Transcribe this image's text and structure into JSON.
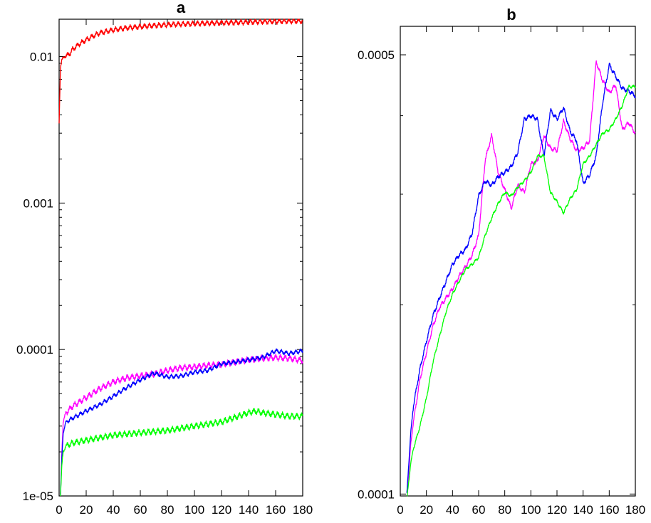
{
  "chart_data": [
    {
      "type": "line",
      "title": "a",
      "xlabel": "",
      "ylabel": "",
      "xlim": [
        0,
        180
      ],
      "ylim": [
        1e-05,
        0.02
      ],
      "yscale": "log",
      "grid": false,
      "x_ticks": [
        0,
        20,
        40,
        60,
        80,
        100,
        120,
        140,
        160,
        180
      ],
      "x_tick_labels": [
        "0",
        "20",
        "40",
        "60",
        "80",
        "100",
        "120",
        "140",
        "160",
        "180"
      ],
      "y_major_ticks": [
        1e-05,
        0.0001,
        0.001,
        0.01
      ],
      "y_tick_labels": [
        "1e-05",
        "0.0001",
        "0.001",
        "0.01"
      ],
      "series": [
        {
          "color": "#ff0000",
          "noise": 0.06,
          "x": [
            0,
            1,
            2,
            4,
            6,
            8,
            10,
            15,
            20,
            25,
            30,
            40,
            50,
            60,
            70,
            80,
            100,
            120,
            140,
            160,
            180
          ],
          "y": [
            0.0035,
            0.0085,
            0.0095,
            0.01,
            0.0102,
            0.0105,
            0.0112,
            0.0122,
            0.013,
            0.0138,
            0.0145,
            0.0152,
            0.0157,
            0.016,
            0.0163,
            0.0165,
            0.0168,
            0.017,
            0.0172,
            0.0174,
            0.0175
          ]
        },
        {
          "color": "#ff00ff",
          "noise": 0.07,
          "x": [
            1,
            2,
            3,
            5,
            10,
            20,
            30,
            40,
            50,
            60,
            70,
            80,
            90,
            100,
            110,
            120,
            130,
            140,
            150,
            160,
            170,
            180
          ],
          "y": [
            1e-05,
            2e-05,
            3.2e-05,
            3.7e-05,
            4.1e-05,
            4.7e-05,
            5.4e-05,
            6e-05,
            6.4e-05,
            6.6e-05,
            6.8e-05,
            7.2e-05,
            7.5e-05,
            7.6e-05,
            7.8e-05,
            7.9e-05,
            8.2e-05,
            8.5e-05,
            8.7e-05,
            8.8e-05,
            8.7e-05,
            8.4e-05
          ]
        },
        {
          "color": "#0000ff",
          "noise": 0.05,
          "x": [
            1,
            2,
            3,
            5,
            10,
            20,
            30,
            40,
            50,
            60,
            70,
            80,
            90,
            100,
            110,
            120,
            130,
            140,
            150,
            160,
            170,
            180
          ],
          "y": [
            1e-05,
            1.8e-05,
            2.7e-05,
            3.2e-05,
            3.4e-05,
            3.8e-05,
            4.2e-05,
            4.8e-05,
            5.5e-05,
            6.2e-05,
            6.9e-05,
            6.5e-05,
            6.6e-05,
            7e-05,
            7.2e-05,
            8e-05,
            8.2e-05,
            8.5e-05,
            8.8e-05,
            9.8e-05,
            9.4e-05,
            9.8e-05
          ]
        },
        {
          "color": "#00ff00",
          "noise": 0.07,
          "x": [
            1,
            2,
            3,
            5,
            10,
            20,
            30,
            40,
            60,
            80,
            100,
            120,
            140,
            145,
            150,
            160,
            170,
            180
          ],
          "y": [
            1e-05,
            1.6e-05,
            2e-05,
            2.2e-05,
            2.3e-05,
            2.4e-05,
            2.5e-05,
            2.6e-05,
            2.7e-05,
            2.8e-05,
            3e-05,
            3.2e-05,
            3.7e-05,
            3.8e-05,
            3.7e-05,
            3.6e-05,
            3.5e-05,
            3.5e-05
          ]
        }
      ]
    },
    {
      "type": "line",
      "title": "b",
      "xlabel": "",
      "ylabel": "",
      "xlim": [
        0,
        180
      ],
      "ylim": [
        0.0001,
        0.00055
      ],
      "yscale": "log",
      "grid": false,
      "x_ticks": [
        0,
        20,
        40,
        60,
        80,
        100,
        120,
        140,
        160,
        180
      ],
      "x_tick_labels": [
        "0",
        "20",
        "40",
        "60",
        "80",
        "100",
        "120",
        "140",
        "160",
        "180"
      ],
      "y_major_ticks": [
        0.0001,
        0.0005
      ],
      "y_tick_labels": [
        "0.0001",
        "0.0005"
      ],
      "y_minor_ticks": [
        0.0002,
        0.0003,
        0.0004
      ],
      "series": [
        {
          "color": "#ff00ff",
          "noise": 0.012,
          "x": [
            5,
            8,
            10,
            15,
            20,
            25,
            30,
            35,
            40,
            45,
            50,
            55,
            60,
            65,
            70,
            75,
            80,
            85,
            90,
            95,
            100,
            105,
            110,
            115,
            120,
            125,
            130,
            135,
            140,
            145,
            150,
            155,
            160,
            165,
            170,
            175,
            180
          ],
          "y": [
            9.8e-05,
            0.00012,
            0.00013,
            0.000152,
            0.000168,
            0.000185,
            0.000198,
            0.000205,
            0.000212,
            0.000222,
            0.00023,
            0.00024,
            0.000258,
            0.00034,
            0.000372,
            0.000325,
            0.000305,
            0.000285,
            0.00031,
            0.000302,
            0.000335,
            0.000338,
            0.000372,
            0.000355,
            0.000352,
            0.000392,
            0.000368,
            0.000352,
            0.000355,
            0.000365,
            0.000488,
            0.000455,
            0.000435,
            0.000448,
            0.00038,
            0.00039,
            0.000375
          ]
        },
        {
          "color": "#0000ff",
          "noise": 0.012,
          "x": [
            5,
            8,
            10,
            15,
            20,
            25,
            30,
            35,
            40,
            45,
            50,
            55,
            60,
            65,
            70,
            75,
            80,
            85,
            90,
            95,
            100,
            105,
            110,
            115,
            120,
            125,
            130,
            135,
            140,
            145,
            150,
            155,
            160,
            165,
            170,
            175,
            180
          ],
          "y": [
            0.0001,
            0.000125,
            0.000138,
            0.000158,
            0.000175,
            0.000192,
            0.000205,
            0.000218,
            0.000232,
            0.00024,
            0.000245,
            0.00026,
            0.000298,
            0.000315,
            0.00031,
            0.00032,
            0.000325,
            0.000332,
            0.00035,
            0.000395,
            0.0004,
            0.000395,
            0.000345,
            0.000408,
            0.000395,
            0.000412,
            0.000378,
            0.000365,
            0.000312,
            0.000322,
            0.000345,
            0.00042,
            0.000482,
            0.000462,
            0.000442,
            0.000438,
            0.00043
          ]
        },
        {
          "color": "#00ff00",
          "noise": 0.008,
          "x": [
            5,
            8,
            10,
            15,
            20,
            25,
            30,
            35,
            40,
            45,
            50,
            55,
            60,
            65,
            70,
            75,
            80,
            85,
            90,
            95,
            100,
            105,
            110,
            115,
            120,
            125,
            130,
            135,
            140,
            145,
            150,
            155,
            160,
            165,
            170,
            175,
            180
          ],
          "y": [
            9.8e-05,
            0.000112,
            0.000118,
            0.000128,
            0.000142,
            0.000162,
            0.000178,
            0.000195,
            0.000208,
            0.000218,
            0.000228,
            0.000232,
            0.000238,
            0.000258,
            0.000275,
            0.00029,
            0.000302,
            0.000298,
            0.000308,
            0.000315,
            0.000325,
            0.000345,
            0.000345,
            0.000302,
            0.000292,
            0.00028,
            0.000295,
            0.000305,
            0.000335,
            0.000345,
            0.00036,
            0.000375,
            0.00038,
            0.000395,
            0.000415,
            0.000445,
            0.000445
          ]
        }
      ]
    }
  ]
}
